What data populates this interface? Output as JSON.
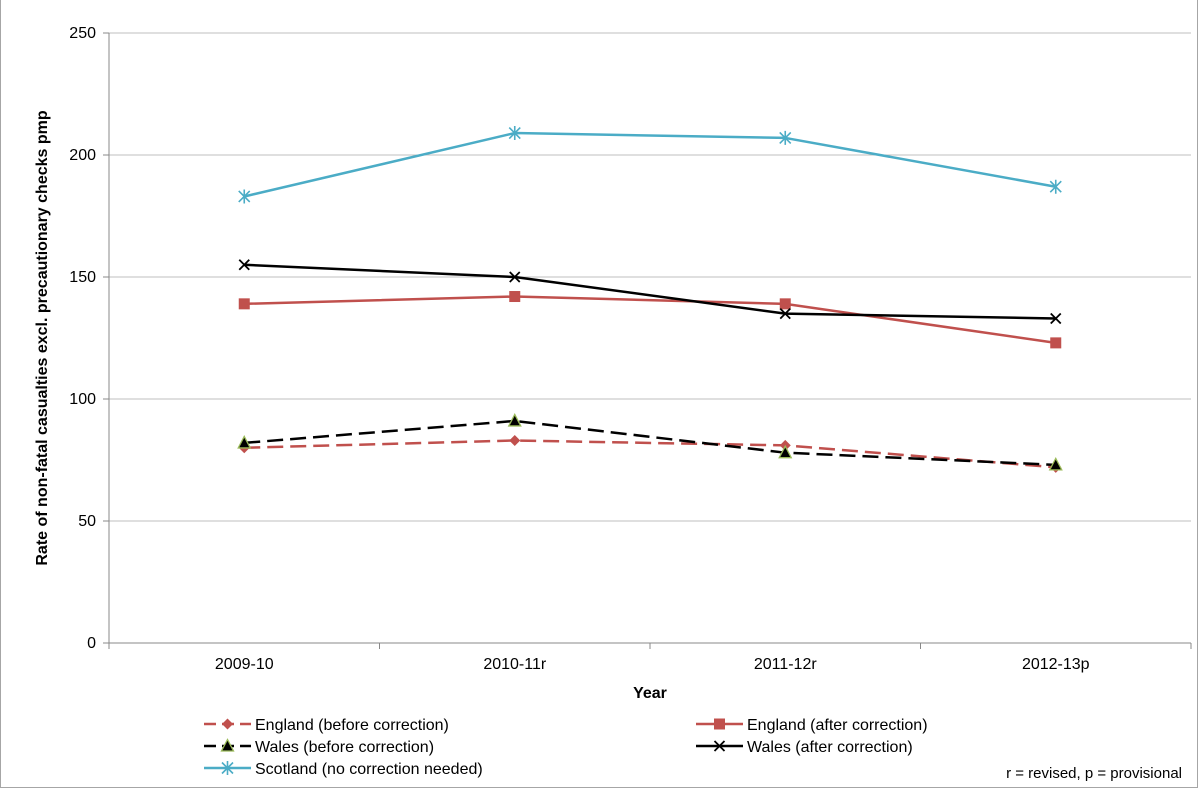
{
  "chart_data": {
    "type": "line",
    "title": "",
    "xlabel": "Year",
    "ylabel": "Rate of non-fatal casualties excl. precautionary checks pmp",
    "categories": [
      "2009-10",
      "2010-11r",
      "2011-12r",
      "2012-13p"
    ],
    "ylim": [
      0,
      250
    ],
    "yticks": [
      0,
      50,
      100,
      150,
      200,
      250
    ],
    "grid": true,
    "legend_position": "bottom",
    "series": [
      {
        "name": "England (before correction)",
        "values": [
          80,
          83,
          81,
          72
        ],
        "color": "#c0504d",
        "dash": true,
        "marker": "diamond"
      },
      {
        "name": "England (after correction)",
        "values": [
          139,
          142,
          139,
          123
        ],
        "color": "#c0504d",
        "dash": false,
        "marker": "square"
      },
      {
        "name": "Wales (before correction)",
        "values": [
          82,
          91,
          78,
          73
        ],
        "color": "#000000",
        "dash": true,
        "marker": "triangle"
      },
      {
        "name": "Wales (after correction)",
        "values": [
          155,
          150,
          135,
          133
        ],
        "color": "#000000",
        "dash": false,
        "marker": "x"
      },
      {
        "name": "Scotland (no correction needed)",
        "values": [
          183,
          209,
          207,
          187
        ],
        "color": "#4bacc6",
        "dash": false,
        "marker": "star"
      }
    ],
    "note": "r = revised, p = provisional"
  }
}
